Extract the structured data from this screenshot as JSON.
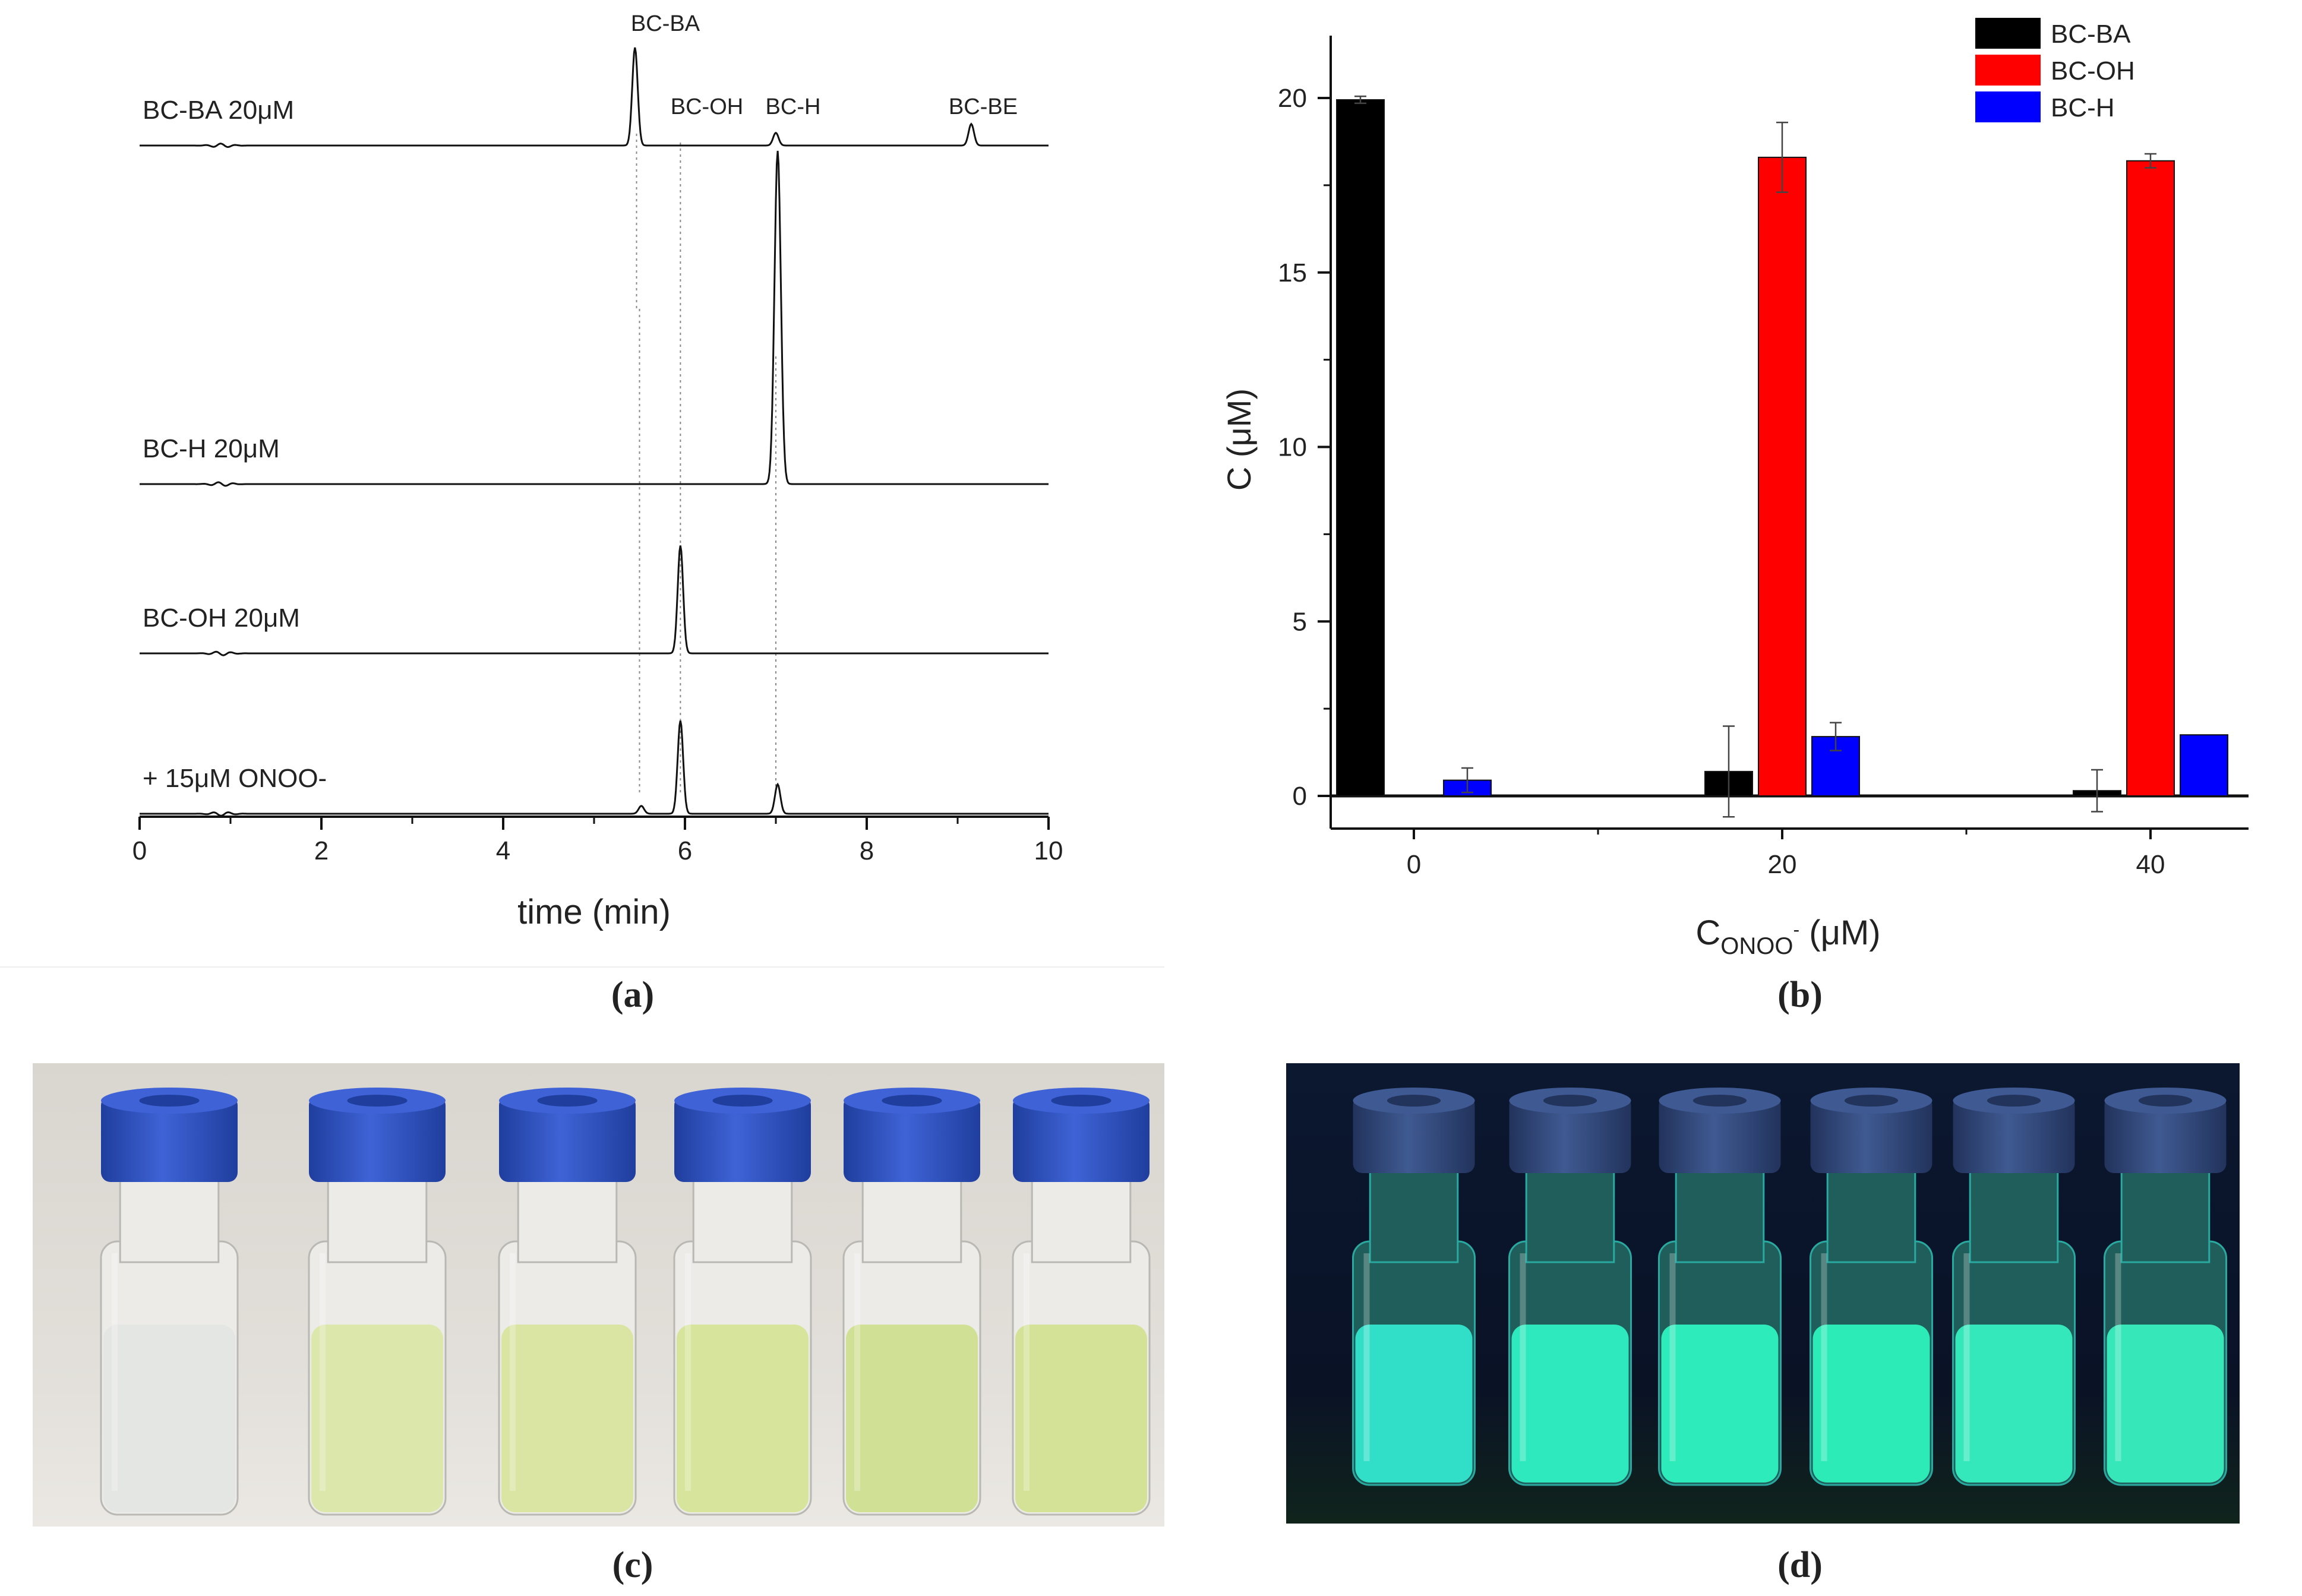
{
  "captions": {
    "a": "(a)",
    "b": "(b)",
    "c": "(c)",
    "d": "(d)"
  },
  "chart_data": [
    {
      "type": "line",
      "panel": "a",
      "title": "",
      "xlabel": "time (min)",
      "ylabel": "",
      "xlim": [
        0,
        10
      ],
      "xticks": [
        "0",
        "2",
        "4",
        "6",
        "8",
        "10"
      ],
      "traces": [
        {
          "name": "BC-BA 20μM",
          "peaks": [
            {
              "label": "BC-BA",
              "time": 5.45,
              "height": 1.0
            },
            {
              "label": "BC-OH",
              "time": 5.95,
              "height": 0.0
            },
            {
              "label": "BC-H",
              "time": 7.0,
              "height": 0.13
            },
            {
              "label": "BC-BE",
              "time": 9.15,
              "height": 0.22
            }
          ]
        },
        {
          "name": "BC-H 20μM",
          "peaks": [
            {
              "label": "BC-H",
              "time": 7.02,
              "height": 3.4
            }
          ]
        },
        {
          "name": "BC-OH 20μM",
          "peaks": [
            {
              "label": "BC-OH",
              "time": 5.95,
              "height": 1.1
            }
          ]
        },
        {
          "name": "+ 15μM ONOO-",
          "peaks": [
            {
              "label": "BC-BA",
              "time": 5.52,
              "height": 0.08
            },
            {
              "label": "BC-OH",
              "time": 5.95,
              "height": 0.95
            },
            {
              "label": "BC-H",
              "time": 7.02,
              "height": 0.3
            }
          ]
        }
      ],
      "peak_labels": [
        "BC-BA",
        "BC-OH",
        "BC-H",
        "BC-BE"
      ],
      "reference_lines_min": [
        5.5,
        5.95,
        7.0
      ]
    },
    {
      "type": "bar",
      "panel": "b",
      "title": "",
      "xlabel": "C",
      "xlabel_sub": "ONOO",
      "xlabel_sup": "-",
      "xlabel_unit": " (μM)",
      "ylabel": "C (μM)",
      "ylim": [
        0,
        21
      ],
      "yticks": [
        "0",
        "5",
        "10",
        "15",
        "20"
      ],
      "categories": [
        "0",
        "20",
        "40"
      ],
      "series": [
        {
          "name": "BC-BA",
          "color": "#000000",
          "values": [
            19.95,
            0.7,
            0.15
          ],
          "errors": [
            0.1,
            1.3,
            0.6
          ]
        },
        {
          "name": "BC-OH",
          "color": "#ff0000",
          "values": [
            0,
            18.3,
            18.2
          ],
          "errors": [
            0,
            1.0,
            0.2
          ]
        },
        {
          "name": "BC-H",
          "color": "#0000ff",
          "values": [
            0.45,
            1.7,
            1.75
          ],
          "errors": [
            0.35,
            0.4,
            0
          ]
        }
      ],
      "legend": "top-right"
    }
  ],
  "photos": {
    "c": {
      "description_icon": "vial-photo-daylight",
      "vial_count": 6
    },
    "d": {
      "description_icon": "vial-photo-uv",
      "vial_count": 6
    }
  }
}
